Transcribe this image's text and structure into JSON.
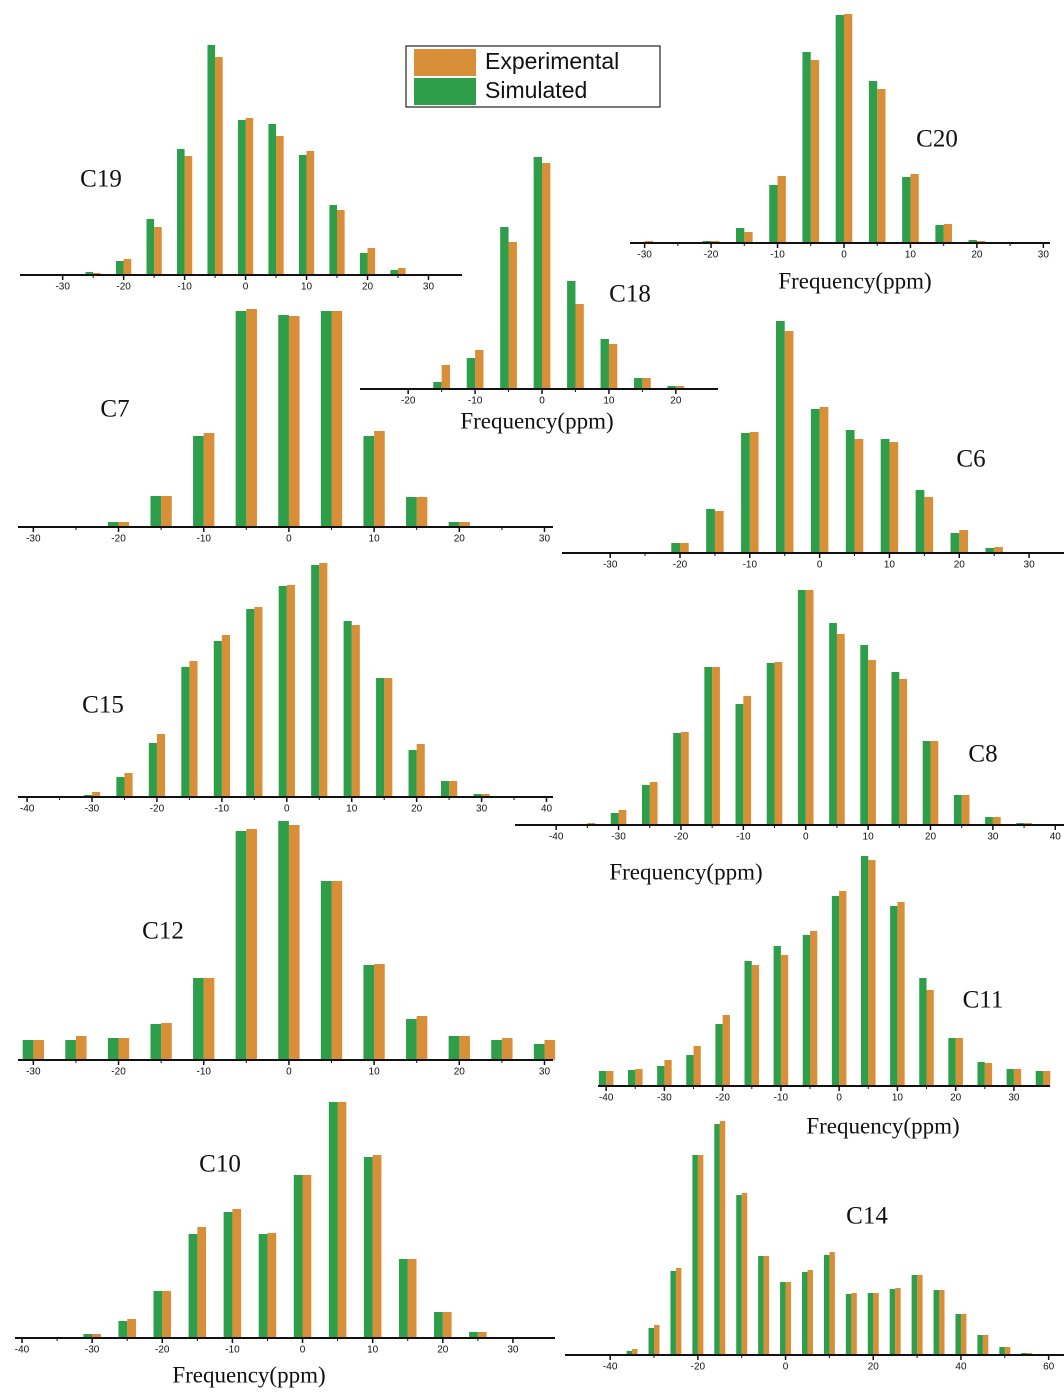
{
  "chart_data": [
    {
      "type": "bar",
      "title": "C19",
      "x": [
        -30,
        -25,
        -20,
        -15,
        -10,
        -5,
        0,
        5,
        10,
        15,
        20,
        25,
        30
      ],
      "xlim": [
        -37,
        35.5
      ],
      "xticks": [
        -30,
        -20,
        -10,
        0,
        10,
        20,
        30
      ],
      "series": [
        {
          "name": "Experimental",
          "color": "#d88f38",
          "values": [
            0,
            2,
            16,
            48,
            119,
            218,
            157,
            139,
            124,
            65,
            27,
            7,
            0
          ]
        },
        {
          "name": "Simulated",
          "color": "#2e9e4b",
          "values": [
            0,
            3,
            14,
            56,
            126,
            230,
            155,
            151,
            120,
            70,
            22,
            5,
            0
          ]
        }
      ]
    },
    {
      "type": "bar",
      "title": "C20",
      "x_label": "Frequency(ppm)",
      "x": [
        -30,
        -25,
        -20,
        -15,
        -10,
        -5,
        0,
        5,
        10,
        15,
        20,
        25,
        30
      ],
      "xlim": [
        -32.2,
        31
      ],
      "xticks": [
        -30,
        -20,
        -10,
        0,
        10,
        20,
        30
      ],
      "series": [
        {
          "name": "Experimental",
          "color": "#d88f38",
          "values": [
            2,
            1,
            2,
            11,
            67,
            183,
            229,
            154,
            69,
            19,
            2,
            0,
            0
          ]
        },
        {
          "name": "Simulated",
          "color": "#2e9e4b",
          "values": [
            0,
            1,
            2,
            15,
            58,
            191,
            228,
            162,
            66,
            18,
            3,
            0,
            0
          ]
        }
      ]
    },
    {
      "type": "bar",
      "title": "C18",
      "x_label": "Frequency(ppm)",
      "x": [
        -20,
        -15,
        -10,
        -5,
        0,
        5,
        10,
        15,
        20
      ],
      "xlim": [
        -27.2,
        26.3
      ],
      "xticks": [
        -20,
        -10,
        0,
        10,
        20
      ],
      "series": [
        {
          "name": "Experimental",
          "color": "#d88f38",
          "values": [
            0,
            24,
            39,
            147,
            226,
            85,
            45,
            11,
            3
          ]
        },
        {
          "name": "Simulated",
          "color": "#2e9e4b",
          "values": [
            0,
            7,
            31,
            162,
            232,
            108,
            50,
            11,
            3
          ]
        }
      ]
    },
    {
      "type": "bar",
      "title": "C7",
      "x": [
        -30,
        -25,
        -20,
        -15,
        -10,
        -5,
        0,
        5,
        10,
        15,
        20,
        25,
        30
      ],
      "xlim": [
        -31.8,
        31
      ],
      "xticks": [
        -30,
        -20,
        -10,
        0,
        10,
        20,
        30
      ],
      "series": [
        {
          "name": "Experimental",
          "color": "#d88f38",
          "values": [
            0,
            1,
            5,
            31,
            94,
            218,
            211,
            216,
            96,
            30,
            5,
            1,
            0
          ]
        },
        {
          "name": "Simulated",
          "color": "#2e9e4b",
          "values": [
            0,
            1,
            5,
            31,
            91,
            216,
            212,
            216,
            91,
            30,
            5,
            1,
            0
          ]
        }
      ]
    },
    {
      "type": "bar",
      "title": "C6",
      "x": [
        -30,
        -25,
        -20,
        -15,
        -10,
        -5,
        0,
        5,
        10,
        15,
        20,
        25,
        30
      ],
      "xlim": [
        -36.9,
        35
      ],
      "xticks": [
        -30,
        -20,
        -10,
        0,
        10,
        20,
        30
      ],
      "series": [
        {
          "name": "Experimental",
          "color": "#d88f38",
          "values": [
            0,
            1,
            10,
            42,
            121,
            222,
            146,
            114,
            111,
            56,
            23,
            6,
            0
          ]
        },
        {
          "name": "Simulated",
          "color": "#2e9e4b",
          "values": [
            0,
            1,
            10,
            44,
            120,
            232,
            144,
            123,
            114,
            63,
            20,
            5,
            1
          ]
        }
      ]
    },
    {
      "type": "bar",
      "title": "C15",
      "x": [
        -40,
        -35,
        -30,
        -25,
        -20,
        -15,
        -10,
        -5,
        0,
        5,
        10,
        15,
        20,
        25,
        30,
        35,
        40
      ],
      "xlim": [
        -41.4,
        41
      ],
      "xticks": [
        -40,
        -30,
        -20,
        -10,
        0,
        10,
        20,
        30,
        40
      ],
      "series": [
        {
          "name": "Experimental",
          "color": "#d88f38",
          "values": [
            0,
            0,
            5,
            24,
            63,
            136,
            162,
            190,
            212,
            234,
            172,
            119,
            53,
            16,
            3,
            0,
            0
          ]
        },
        {
          "name": "Simulated",
          "color": "#2e9e4b",
          "values": [
            0,
            0,
            2,
            20,
            54,
            130,
            156,
            188,
            211,
            232,
            176,
            119,
            47,
            16,
            3,
            0,
            0
          ]
        }
      ]
    },
    {
      "type": "bar",
      "title": "C8",
      "x_label": "Frequency(ppm)",
      "x": [
        -40,
        -35,
        -30,
        -25,
        -20,
        -15,
        -10,
        -5,
        0,
        5,
        10,
        15,
        20,
        25,
        30,
        35,
        40
      ],
      "xlim": [
        -46.6,
        41.4
      ],
      "xticks": [
        -40,
        -30,
        -20,
        -10,
        0,
        10,
        20,
        30,
        40
      ],
      "series": [
        {
          "name": "Experimental",
          "color": "#d88f38",
          "values": [
            0,
            2,
            15,
            43,
            93,
            158,
            129,
            163,
            235,
            191,
            165,
            146,
            84,
            30,
            8,
            2,
            0
          ]
        },
        {
          "name": "Simulated",
          "color": "#2e9e4b",
          "values": [
            0,
            1,
            12,
            40,
            92,
            158,
            121,
            162,
            235,
            202,
            180,
            153,
            84,
            30,
            8,
            2,
            0
          ]
        }
      ]
    },
    {
      "type": "bar",
      "title": "C12",
      "x": [
        -30,
        -25,
        -20,
        -15,
        -10,
        -5,
        0,
        5,
        10,
        15,
        20,
        25,
        30
      ],
      "xlim": [
        -31.8,
        31
      ],
      "xticks": [
        -30,
        -20,
        -10,
        0,
        10,
        20,
        30
      ],
      "series": [
        {
          "name": "Experimental",
          "color": "#d88f38",
          "values": [
            20,
            24,
            22,
            37,
            82,
            231,
            235,
            179,
            96,
            44,
            24,
            22,
            20
          ]
        },
        {
          "name": "Simulated",
          "color": "#2e9e4b",
          "values": [
            20,
            20,
            22,
            36,
            82,
            229,
            239,
            179,
            95,
            41,
            24,
            20,
            16
          ]
        }
      ]
    },
    {
      "type": "bar",
      "title": "C11",
      "x_label": "Frequency(ppm)",
      "x": [
        -40,
        -35,
        -30,
        -25,
        -20,
        -15,
        -10,
        -5,
        0,
        5,
        10,
        15,
        20,
        25,
        30,
        35
      ],
      "xlim": [
        -41.4,
        36.2
      ],
      "xticks": [
        -40,
        -30,
        -20,
        -10,
        0,
        10,
        20,
        30
      ],
      "series": [
        {
          "name": "Experimental",
          "color": "#d88f38",
          "values": [
            15,
            17,
            26,
            40,
            71,
            121,
            131,
            155,
            195,
            226,
            184,
            96,
            48,
            23,
            17,
            15
          ]
        },
        {
          "name": "Simulated",
          "color": "#2e9e4b",
          "values": [
            15,
            16,
            20,
            31,
            62,
            125,
            140,
            151,
            190,
            230,
            180,
            108,
            48,
            24,
            17,
            15
          ]
        }
      ]
    },
    {
      "type": "bar",
      "title": "C10",
      "x_label": "Frequency(ppm)",
      "x": [
        -35,
        -30,
        -25,
        -20,
        -15,
        -10,
        -5,
        0,
        5,
        10,
        15,
        20,
        25,
        30
      ],
      "xlim": [
        -41,
        36
      ],
      "xticks": [
        -40,
        -30,
        -20,
        -10,
        0,
        10,
        20,
        30
      ],
      "series": [
        {
          "name": "Experimental",
          "color": "#d88f38",
          "values": [
            1,
            4,
            19,
            47,
            111,
            129,
            105,
            163,
            236,
            183,
            79,
            26,
            6,
            1
          ]
        },
        {
          "name": "Simulated",
          "color": "#2e9e4b",
          "values": [
            1,
            4,
            17,
            47,
            104,
            126,
            104,
            163,
            236,
            181,
            79,
            26,
            6,
            1
          ]
        }
      ]
    },
    {
      "type": "bar",
      "title": "C14",
      "x": [
        -40,
        -35,
        -30,
        -25,
        -20,
        -15,
        -10,
        -5,
        0,
        5,
        10,
        15,
        20,
        25,
        30,
        35,
        40,
        45,
        50,
        55
      ],
      "xlim": [
        -50.3,
        63.5
      ],
      "xticks": [
        -40,
        -20,
        0,
        20,
        40,
        60
      ],
      "series": [
        {
          "name": "Experimental",
          "color": "#d88f38",
          "values": [
            0,
            6,
            30,
            87,
            200,
            234,
            162,
            99,
            73,
            85,
            103,
            62,
            62,
            67,
            80,
            65,
            41,
            20,
            8,
            2
          ]
        },
        {
          "name": "Simulated",
          "color": "#2e9e4b",
          "values": [
            0,
            4,
            27,
            84,
            200,
            231,
            160,
            99,
            73,
            83,
            100,
            61,
            62,
            66,
            80,
            65,
            41,
            20,
            8,
            2
          ]
        }
      ]
    }
  ]
}
